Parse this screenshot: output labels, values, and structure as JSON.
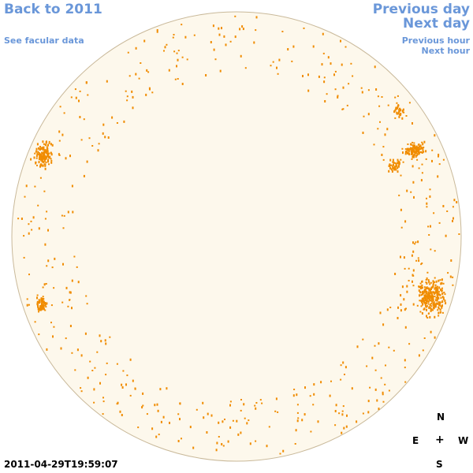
{
  "nav": {
    "back_label": "Back to 2011",
    "facular_label": "See facular data",
    "prev_day_label": "Previous day",
    "next_day_label": "Next day",
    "prev_hour_label": "Previous hour",
    "next_hour_label": "Next hour"
  },
  "timestamp": "2011-04-29T19:59:07",
  "compass": {
    "north": "N",
    "east": "E",
    "center": "+",
    "west": "W",
    "south": "S"
  },
  "colors": {
    "disk_fill": "#fdf8ec",
    "disk_outline": "#c9b99a",
    "facula": "#f08c00",
    "link": "#6a97d9"
  },
  "icons": {
    "disk": "solar-disk-icon",
    "center_marker": "plus-icon"
  }
}
